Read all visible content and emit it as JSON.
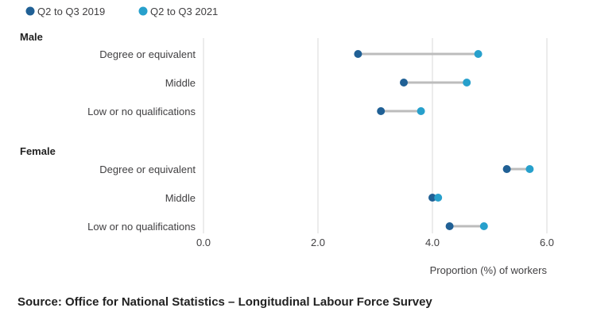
{
  "chart_data": {
    "type": "dumbbell",
    "title": "",
    "xlabel": "Proportion (%) of workers",
    "xlim": [
      0,
      6
    ],
    "xticks": [
      "0.0",
      "2.0",
      "4.0",
      "6.0"
    ],
    "series": [
      {
        "name": "Q2 to Q3 2019",
        "color": "#206095"
      },
      {
        "name": "Q2 to Q3 2021",
        "color": "#27a0cc"
      }
    ],
    "groups": [
      {
        "name": "Male",
        "rows": [
          {
            "label": "Degree or equivalent",
            "values": [
              2.7,
              4.8
            ]
          },
          {
            "label": "Middle",
            "values": [
              3.5,
              4.6
            ]
          },
          {
            "label": "Low or no qualifications",
            "values": [
              3.1,
              3.8
            ]
          }
        ]
      },
      {
        "name": "Female",
        "rows": [
          {
            "label": "Degree or equivalent",
            "values": [
              5.3,
              5.7
            ]
          },
          {
            "label": "Middle",
            "values": [
              4.0,
              4.1
            ]
          },
          {
            "label": "Low or no qualifications",
            "values": [
              4.3,
              4.9
            ]
          }
        ]
      }
    ]
  },
  "source": "Source: Office for National Statistics – Longitudinal Labour Force Survey",
  "colors": {
    "connector": "#bcbcbc",
    "grid": "#d9d9d9"
  }
}
